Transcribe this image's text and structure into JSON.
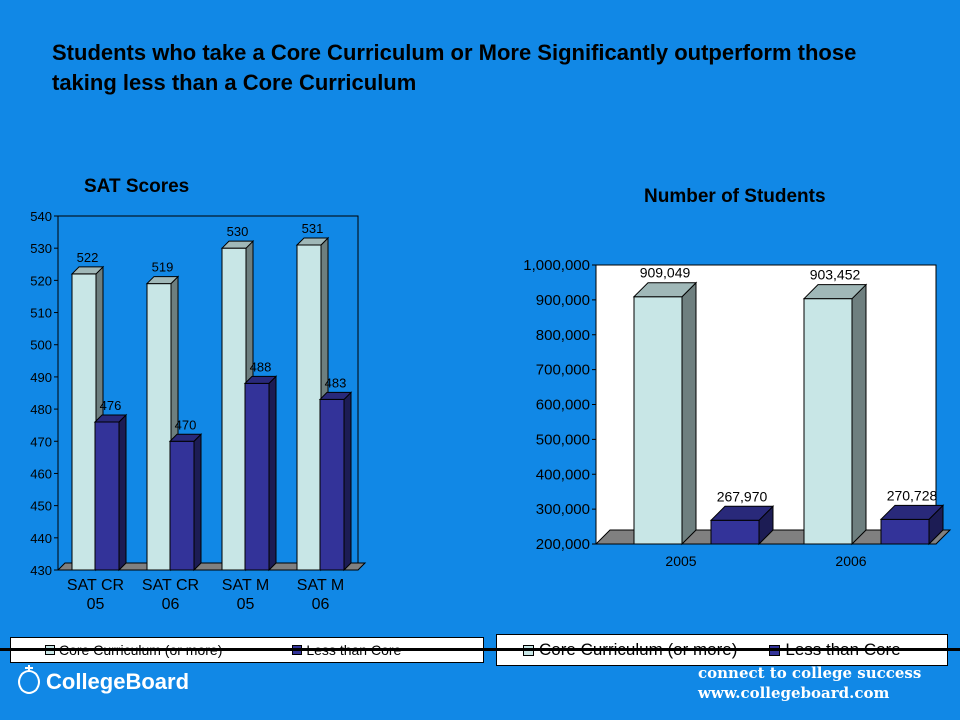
{
  "title": "Students who take a Core Curriculum or More Significantly outperform those taking less than a Core Curriculum",
  "colors": {
    "background": "#1188e6",
    "core": "#c8e6e6",
    "less": "#333399"
  },
  "chart_data": [
    {
      "type": "bar",
      "title": "SAT Scores",
      "categories": [
        "SAT CR 05",
        "SAT CR 06",
        "SAT M 05",
        "SAT M 06"
      ],
      "category_lines": [
        [
          "SAT CR",
          "05"
        ],
        [
          "SAT CR",
          "06"
        ],
        [
          "SAT M",
          "05"
        ],
        [
          "SAT M",
          "06"
        ]
      ],
      "series": [
        {
          "name": "Core Curriculum (or more)",
          "values": [
            522,
            519,
            530,
            531
          ]
        },
        {
          "name": "Less than Core",
          "values": [
            476,
            470,
            488,
            483
          ]
        }
      ],
      "value_labels": [
        [
          "522",
          "519",
          "530",
          "531"
        ],
        [
          "476",
          "470",
          "488",
          "483"
        ]
      ],
      "ylim": [
        430,
        540
      ],
      "yticks": [
        "430",
        "440",
        "450",
        "460",
        "470",
        "480",
        "490",
        "500",
        "510",
        "520",
        "530",
        "540"
      ],
      "grid": false,
      "legend": "bottom"
    },
    {
      "type": "bar",
      "title": "Number of Students",
      "categories": [
        "2005",
        "2006"
      ],
      "series": [
        {
          "name": "Core Curriculum (or more)",
          "values": [
            909049,
            903452
          ]
        },
        {
          "name": "Less than Core",
          "values": [
            267970,
            270728
          ]
        }
      ],
      "value_labels": [
        [
          "909,049",
          "903,452"
        ],
        [
          "267,970",
          "270,728"
        ]
      ],
      "ylim": [
        200000,
        1000000
      ],
      "yticks": [
        "200,000",
        "300,000",
        "400,000",
        "500,000",
        "600,000",
        "700,000",
        "800,000",
        "900,000",
        "1,000,000"
      ],
      "grid": false,
      "legend": "bottom"
    }
  ],
  "legend_left": {
    "core": "Core Curriculum (or more)",
    "less": "Less than Core"
  },
  "legend_right": {
    "core": "Core Curriculum (or more)",
    "less": "Less than Core"
  },
  "footer": {
    "logo": "CollegeBoard",
    "logo_icon": "acorn-icon",
    "tagline1": "connect to college success",
    "tagline2": "www.collegeboard.com"
  }
}
